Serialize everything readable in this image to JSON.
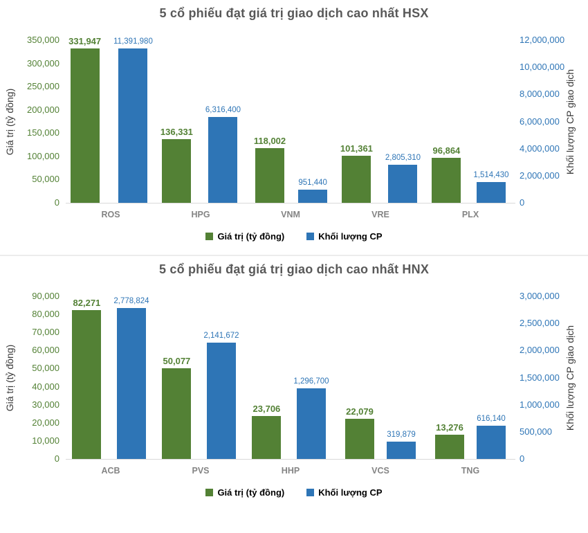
{
  "colors": {
    "value_green": "#538135",
    "volume_blue": "#2E75B6",
    "title_gray": "#595959",
    "category_gray": "#848484",
    "axis_line": "#d9d9d9",
    "divider": "#ececec"
  },
  "chart_data": [
    {
      "type": "bar",
      "title": "5 cổ phiếu đạt giá trị giao dịch cao nhất HSX",
      "categories": [
        "ROS",
        "HPG",
        "VNM",
        "VRE",
        "PLX"
      ],
      "series": [
        {
          "name": "Giá trị (tỷ đồng)",
          "axis": "left",
          "color": "#538135",
          "values": [
            331947,
            136331,
            118002,
            101361,
            96864
          ],
          "labels": [
            "331,947",
            "136,331",
            "118,002",
            "101,361",
            "96,864"
          ]
        },
        {
          "name": "Khối lượng CP",
          "axis": "right",
          "color": "#2E75B6",
          "values": [
            11391980,
            6316400,
            951440,
            2805310,
            1514430
          ],
          "labels": [
            "11,391,980",
            "6,316,400",
            "951,440",
            "2,805,310",
            "1,514,430"
          ]
        }
      ],
      "left_axis": {
        "label": "Giá trị (tỷ đồng)",
        "max": 350000,
        "min": 0,
        "ticks": [
          "350,000",
          "300,000",
          "250,000",
          "200,000",
          "150,000",
          "100,000",
          "50,000",
          "0"
        ]
      },
      "right_axis": {
        "label": "Khối lượng CP giao dịch",
        "max": 12000000,
        "min": 0,
        "ticks": [
          "12,000,000",
          "10,000,000",
          "8,000,000",
          "6,000,000",
          "4,000,000",
          "2,000,000",
          "0"
        ]
      },
      "legend": [
        "Giá trị (tỷ đồng)",
        "Khối lượng CP"
      ],
      "legend_position": "bottom",
      "grid": false
    },
    {
      "type": "bar",
      "title": "5 cổ phiếu đạt giá trị giao dịch cao nhất HNX",
      "categories": [
        "ACB",
        "PVS",
        "HHP",
        "VCS",
        "TNG"
      ],
      "series": [
        {
          "name": "Giá trị (tỷ đồng)",
          "axis": "left",
          "color": "#538135",
          "values": [
            82271,
            50077,
            23706,
            22079,
            13276
          ],
          "labels": [
            "82,271",
            "50,077",
            "23,706",
            "22,079",
            "13,276"
          ]
        },
        {
          "name": "Khối lượng CP",
          "axis": "right",
          "color": "#2E75B6",
          "values": [
            2778824,
            2141672,
            1296700,
            319879,
            616140
          ],
          "labels": [
            "2,778,824",
            "2,141,672",
            "1,296,700",
            "319,879",
            "616,140"
          ]
        }
      ],
      "left_axis": {
        "label": "Giá trị (tỷ đồng)",
        "max": 90000,
        "min": 0,
        "ticks": [
          "90,000",
          "80,000",
          "70,000",
          "60,000",
          "50,000",
          "40,000",
          "30,000",
          "20,000",
          "10,000",
          "0"
        ]
      },
      "right_axis": {
        "label": "Khối lượng CP giao dịch",
        "max": 3000000,
        "min": 0,
        "ticks": [
          "3,000,000",
          "2,500,000",
          "2,000,000",
          "1,500,000",
          "1,000,000",
          "500,000",
          "0"
        ]
      },
      "legend": [
        "Giá trị (tỷ đồng)",
        "Khối lượng CP"
      ],
      "legend_position": "bottom",
      "grid": false
    }
  ]
}
